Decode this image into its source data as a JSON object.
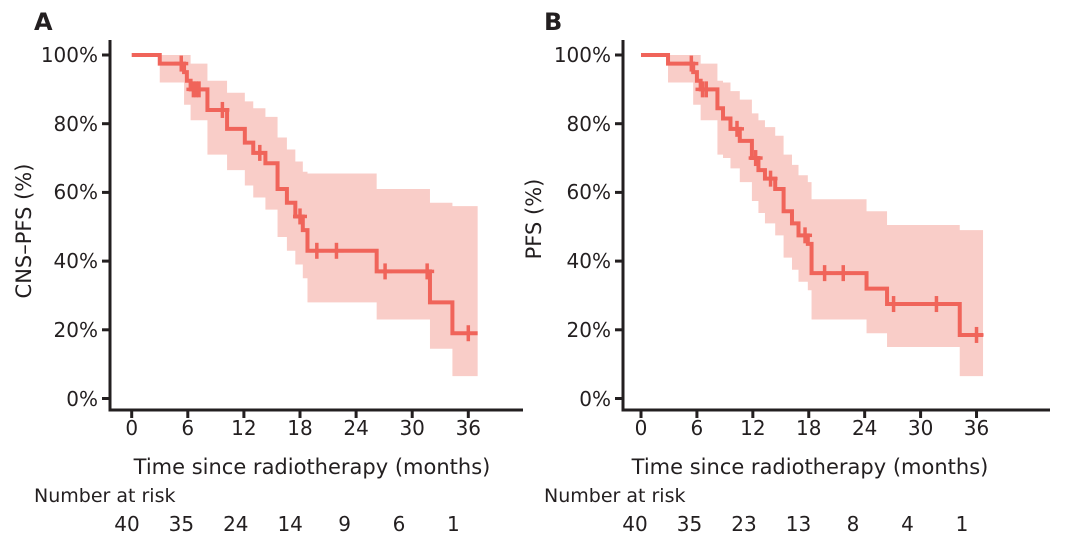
{
  "figure": {
    "colors": {
      "line": "#f0645a",
      "band": "#f9cdc8",
      "axis": "#231f20",
      "text": "#231f20"
    },
    "panels": [
      {
        "label": "A",
        "ylabel": "CNS–PFS (%)",
        "xlabel": "Time since radiotherapy (months)",
        "risk_title": "Number at risk",
        "y_ticks": [
          "100%",
          "80%",
          "60%",
          "40%",
          "20%",
          "0%"
        ],
        "x_ticks": [
          "0",
          "6",
          "12",
          "18",
          "24",
          "30",
          "36"
        ],
        "number_at_risk": [
          "40",
          "35",
          "24",
          "14",
          "9",
          "6",
          "1"
        ]
      },
      {
        "label": "B",
        "ylabel": "PFS (%)",
        "xlabel": "Time since radiotherapy (months)",
        "risk_title": "Number at risk",
        "y_ticks": [
          "100%",
          "80%",
          "60%",
          "40%",
          "20%",
          "0%"
        ],
        "x_ticks": [
          "0",
          "6",
          "12",
          "18",
          "24",
          "30",
          "36"
        ],
        "number_at_risk": [
          "40",
          "35",
          "23",
          "13",
          "8",
          "4",
          "1"
        ]
      }
    ]
  },
  "chart_data": [
    {
      "type": "line",
      "subtype": "kaplan-meier-step-with-confidence-band",
      "panel": "A",
      "ylabel": "CNS–PFS (%)",
      "xlabel": "Time since radiotherapy (months)",
      "xlim": [
        0,
        38
      ],
      "ylim": [
        0,
        100
      ],
      "x_ticks": [
        0,
        6,
        12,
        18,
        24,
        30,
        36
      ],
      "y_ticks_percent": [
        100,
        80,
        60,
        40,
        20,
        0
      ],
      "grid": false,
      "legend": "none",
      "steps": [
        [
          0,
          100
        ],
        [
          3.0,
          97.5
        ],
        [
          5.6,
          95
        ],
        [
          5.9,
          92.5
        ],
        [
          6.3,
          90
        ],
        [
          8.1,
          84
        ],
        [
          10.2,
          78.5
        ],
        [
          12.1,
          74.5
        ],
        [
          13.0,
          71.5
        ],
        [
          14.3,
          68.5
        ],
        [
          15.6,
          61
        ],
        [
          16.6,
          57
        ],
        [
          17.5,
          53
        ],
        [
          18.3,
          49
        ],
        [
          18.8,
          43
        ],
        [
          26.2,
          37
        ],
        [
          31.9,
          28
        ],
        [
          34.3,
          19
        ]
      ],
      "end_time": 37.0,
      "censors": [
        [
          5.3,
          97.5
        ],
        [
          6.6,
          90
        ],
        [
          6.9,
          90
        ],
        [
          7.2,
          90
        ],
        [
          9.7,
          84
        ],
        [
          13.7,
          71.5
        ],
        [
          18.0,
          53
        ],
        [
          19.8,
          43
        ],
        [
          21.9,
          43
        ],
        [
          27.1,
          37
        ],
        [
          31.6,
          37
        ],
        [
          36.0,
          19
        ]
      ],
      "ci": [
        [
          3.0,
          92,
          100
        ],
        [
          5.6,
          85.5,
          100
        ],
        [
          6.3,
          81,
          97.5
        ],
        [
          8.1,
          71,
          92.5
        ],
        [
          10.2,
          66.5,
          89
        ],
        [
          12.1,
          62,
          86.5
        ],
        [
          13.0,
          58.5,
          84.5
        ],
        [
          14.3,
          55,
          82
        ],
        [
          15.6,
          47,
          76
        ],
        [
          16.6,
          43,
          72.5
        ],
        [
          17.5,
          39,
          69
        ],
        [
          18.3,
          35,
          66
        ],
        [
          18.8,
          28,
          65.5
        ],
        [
          26.2,
          23,
          61
        ],
        [
          31.9,
          14.5,
          57
        ],
        [
          34.3,
          6.5,
          56
        ]
      ],
      "number_at_risk": {
        "times": [
          0,
          6,
          12,
          18,
          24,
          30,
          36
        ],
        "values": [
          40,
          35,
          24,
          14,
          9,
          6,
          1
        ]
      }
    },
    {
      "type": "line",
      "subtype": "kaplan-meier-step-with-confidence-band",
      "panel": "B",
      "ylabel": "PFS (%)",
      "xlabel": "Time since radiotherapy (months)",
      "xlim": [
        0,
        38
      ],
      "ylim": [
        0,
        100
      ],
      "x_ticks": [
        0,
        6,
        12,
        18,
        24,
        30,
        36
      ],
      "y_ticks_percent": [
        100,
        80,
        60,
        40,
        20,
        0
      ],
      "grid": false,
      "legend": "none",
      "steps": [
        [
          0,
          100
        ],
        [
          2.9,
          97.5
        ],
        [
          5.6,
          95
        ],
        [
          6.0,
          92.5
        ],
        [
          6.4,
          90
        ],
        [
          8.2,
          84.5
        ],
        [
          8.8,
          81.5
        ],
        [
          9.6,
          78.5
        ],
        [
          10.6,
          75
        ],
        [
          11.9,
          70
        ],
        [
          12.6,
          66.5
        ],
        [
          13.3,
          64
        ],
        [
          14.4,
          61
        ],
        [
          15.3,
          54.5
        ],
        [
          16.2,
          51
        ],
        [
          16.9,
          47.5
        ],
        [
          17.9,
          45
        ],
        [
          18.3,
          36.5
        ],
        [
          24.2,
          32
        ],
        [
          26.4,
          27.5
        ],
        [
          34.2,
          18.5
        ]
      ],
      "end_time": 36.7,
      "censors": [
        [
          5.4,
          97.5
        ],
        [
          6.6,
          90
        ],
        [
          7.0,
          90
        ],
        [
          10.3,
          78.5
        ],
        [
          12.3,
          70
        ],
        [
          13.9,
          64
        ],
        [
          17.6,
          47.5
        ],
        [
          19.7,
          36.5
        ],
        [
          21.7,
          36.5
        ],
        [
          27.1,
          27.5
        ],
        [
          31.7,
          27.5
        ],
        [
          36.0,
          18.5
        ]
      ],
      "ci": [
        [
          2.9,
          92,
          100
        ],
        [
          5.6,
          85.5,
          100
        ],
        [
          6.4,
          81,
          97.5
        ],
        [
          8.2,
          71,
          92.5
        ],
        [
          8.8,
          70,
          92
        ],
        [
          9.6,
          67,
          89.5
        ],
        [
          10.6,
          63,
          87
        ],
        [
          11.9,
          57.5,
          83
        ],
        [
          12.6,
          54,
          81
        ],
        [
          13.3,
          51,
          79
        ],
        [
          14.4,
          47.5,
          76.5
        ],
        [
          15.3,
          41,
          71
        ],
        [
          16.2,
          37.5,
          68
        ],
        [
          16.9,
          34,
          65
        ],
        [
          17.9,
          31.5,
          63
        ],
        [
          18.3,
          23,
          58
        ],
        [
          24.2,
          19,
          54.5
        ],
        [
          26.4,
          15,
          50.5
        ],
        [
          34.2,
          6.5,
          49
        ]
      ],
      "number_at_risk": {
        "times": [
          0,
          6,
          12,
          18,
          24,
          30,
          36
        ],
        "values": [
          40,
          35,
          23,
          13,
          8,
          4,
          1
        ]
      }
    }
  ]
}
